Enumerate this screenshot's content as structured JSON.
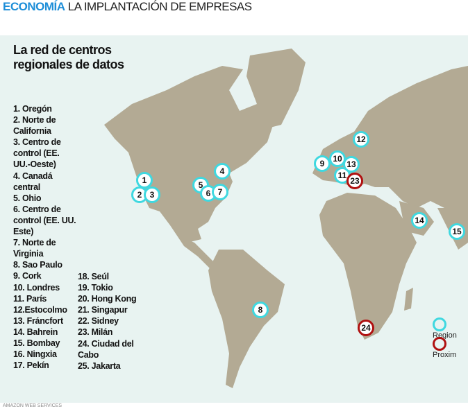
{
  "header": {
    "section": "ECONOMÍA",
    "subtitle": "LA IMPLANTACIÓN DE EMPRESAS"
  },
  "map": {
    "title": "La red de centros regionales de datos",
    "colors": {
      "water": "#e8f3f1",
      "land": "#b3aa94",
      "region": "#3fd8e0",
      "proximity": "#b01010"
    },
    "list_col1": [
      "1. Oregón",
      "2. Norte de California",
      "3. Centro de control (EE. UU.-Oeste)",
      "4. Canadá central",
      "5. Ohio",
      "6. Centro de control (EE. UU. Este)",
      "7. Norte de Virginia",
      "8. Sao Paulo",
      "9. Cork",
      "10. Londres",
      "11. París",
      "12.Estocolmo",
      "13. Fráncfort",
      "14. Bahrein",
      "15. Bombay",
      "16. Ningxia",
      "17. Pekín"
    ],
    "list_col2": [
      "18. Seúl",
      "19. Tokio",
      "20. Hong Kong",
      "21. Singapur",
      "22. Sidney",
      "23. Milán",
      "24. Ciudad del Cabo",
      "25. Jakarta"
    ],
    "markers": [
      {
        "n": "1",
        "type": "region"
      },
      {
        "n": "2",
        "type": "region"
      },
      {
        "n": "3",
        "type": "region"
      },
      {
        "n": "4",
        "type": "region"
      },
      {
        "n": "5",
        "type": "region"
      },
      {
        "n": "6",
        "type": "region"
      },
      {
        "n": "7",
        "type": "region"
      },
      {
        "n": "8",
        "type": "region"
      },
      {
        "n": "9",
        "type": "region"
      },
      {
        "n": "10",
        "type": "region"
      },
      {
        "n": "11",
        "type": "region"
      },
      {
        "n": "12",
        "type": "region"
      },
      {
        "n": "13",
        "type": "region"
      },
      {
        "n": "14",
        "type": "region"
      },
      {
        "n": "15",
        "type": "region"
      },
      {
        "n": "23",
        "type": "proximity"
      },
      {
        "n": "24",
        "type": "proximity"
      }
    ],
    "legend": {
      "region": "Region",
      "proximity": "Proxim"
    }
  },
  "source": "AMAZON WEB SERVICES"
}
